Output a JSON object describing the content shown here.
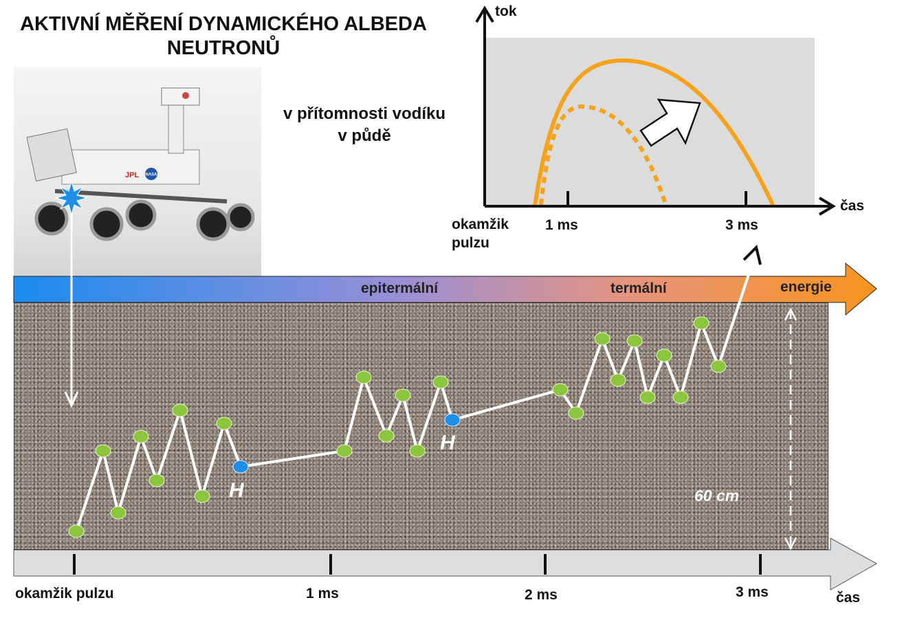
{
  "title": "AKTIVNÍ MĚŘENÍ DYNAMICKÉHO ALBEDA NEUTRONŮ",
  "subtitle": "v přítomnosti vodíku v půdě",
  "inset_chart": {
    "y_axis_label": "tok",
    "x_axis_label": "čas",
    "origin_label": "okamžik pulzu",
    "tick_labels": [
      "1 ms",
      "3 ms"
    ],
    "curve_color": "#f7a21b"
  },
  "energy_bar": {
    "labels": [
      "epitermální",
      "termální"
    ],
    "axis_label": "energie",
    "colors": [
      "#1a8cf0",
      "#9b8fd6",
      "#e8947c",
      "#f7941d"
    ]
  },
  "soil": {
    "depth_label": "60 cm",
    "hydrogen_label": "H",
    "neutron_color": "#8cc63f",
    "hydrogen_color": "#1e8fe8"
  },
  "time_bar": {
    "tick_labels": [
      "okamžik pulzu",
      "1 ms",
      "2 ms",
      "3 ms"
    ],
    "axis_label": "čas"
  },
  "rover": {
    "labels": [
      "JPL",
      "NASA"
    ]
  }
}
